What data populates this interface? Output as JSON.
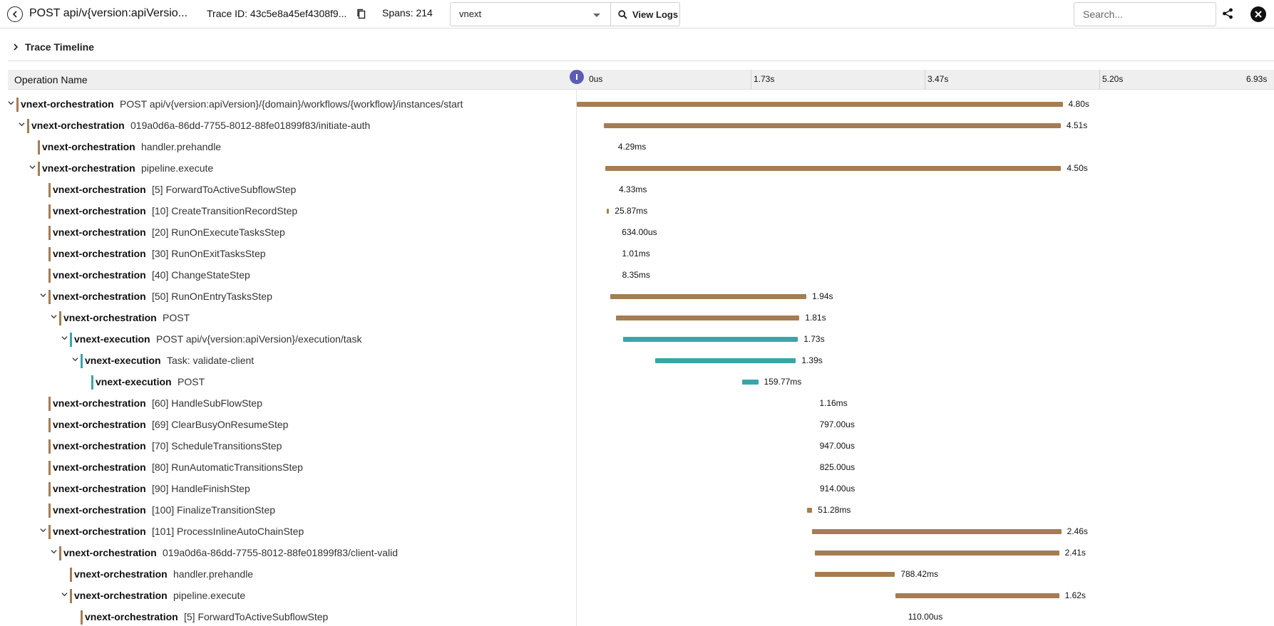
{
  "header": {
    "title": "POST api/v{version:apiVersio...",
    "trace_id": "Trace ID: 43c5e8a45ef4308f9...",
    "spans": "Spans: 214",
    "service_selected": "vnext",
    "view_logs_label": "View Logs",
    "search_placeholder": "Search..."
  },
  "timeline": {
    "toggle_label": "Trace Timeline",
    "op_name_header": "Operation Name",
    "ticks": [
      "0us",
      "1.73s",
      "3.47s",
      "5.20s",
      "6.93s"
    ]
  },
  "colors": {
    "orchestration": "#a67c52",
    "execution": "#3aa5a8",
    "scrubber": "#5c5cb5",
    "small_marker": "#e07050"
  },
  "rows": [
    {
      "depth": 0,
      "chevron": true,
      "service": "vnext-orchestration",
      "op": "POST api/v{version:apiVersion}/{domain}/workflows/{workflow}/instances/start",
      "kind": "orchestration",
      "start": 0.0,
      "dur": 4.8,
      "label": "4.80s"
    },
    {
      "depth": 1,
      "chevron": true,
      "service": "vnext-orchestration",
      "op": "019a0d6a-86dd-7755-8012-88fe01899f83/initiate-auth",
      "kind": "orchestration",
      "start": 0.271,
      "dur": 4.51,
      "label": "4.51s"
    },
    {
      "depth": 2,
      "chevron": false,
      "service": "vnext-orchestration",
      "op": "handler.prehandle",
      "kind": "orchestration",
      "start": 0.281,
      "dur": 0.00429,
      "label": "4.29ms"
    },
    {
      "depth": 2,
      "chevron": true,
      "service": "vnext-orchestration",
      "op": "pipeline.execute",
      "kind": "orchestration",
      "start": 0.285,
      "dur": 4.5,
      "label": "4.50s"
    },
    {
      "depth": 3,
      "chevron": false,
      "service": "vnext-orchestration",
      "op": "[5] ForwardToActiveSubflowStep",
      "kind": "orchestration",
      "start": 0.289,
      "dur": 0.00433,
      "label": "4.33ms"
    },
    {
      "depth": 3,
      "chevron": false,
      "service": "vnext-orchestration",
      "op": "[10] CreateTransitionRecordStep",
      "kind": "orchestration",
      "start": 0.293,
      "dur": 0.02587,
      "label": "25.87ms"
    },
    {
      "depth": 3,
      "chevron": false,
      "service": "vnext-orchestration",
      "op": "[20] RunOnExecuteTasksStep",
      "kind": "orchestration",
      "start": 0.319,
      "dur": 0.000634,
      "label": "634.00us"
    },
    {
      "depth": 3,
      "chevron": false,
      "service": "vnext-orchestration",
      "op": "[30] RunOnExitTasksStep",
      "kind": "orchestration",
      "start": 0.32,
      "dur": 0.00101,
      "label": "1.01ms"
    },
    {
      "depth": 3,
      "chevron": false,
      "service": "vnext-orchestration",
      "op": "[40] ChangeStateStep",
      "kind": "orchestration",
      "start": 0.321,
      "dur": 0.00835,
      "label": "8.35ms"
    },
    {
      "depth": 3,
      "chevron": true,
      "service": "vnext-orchestration",
      "op": "[50] RunOnEntryTasksStep",
      "kind": "orchestration",
      "start": 0.329,
      "dur": 1.94,
      "label": "1.94s"
    },
    {
      "depth": 4,
      "chevron": true,
      "service": "vnext-orchestration",
      "op": "POST",
      "kind": "orchestration",
      "start": 0.389,
      "dur": 1.81,
      "label": "1.81s"
    },
    {
      "depth": 5,
      "chevron": true,
      "service": "vnext-execution",
      "op": "POST api/v{version:apiVersion}/execution/task",
      "kind": "execution",
      "start": 0.455,
      "dur": 1.73,
      "label": "1.73s"
    },
    {
      "depth": 6,
      "chevron": true,
      "service": "vnext-execution",
      "op": "Task: validate-client",
      "kind": "execution",
      "start": 0.775,
      "dur": 1.39,
      "label": "1.39s"
    },
    {
      "depth": 7,
      "chevron": false,
      "service": "vnext-execution",
      "op": "POST",
      "kind": "execution",
      "start": 1.633,
      "dur": 0.15977,
      "label": "159.77ms"
    },
    {
      "depth": 3,
      "chevron": false,
      "service": "vnext-orchestration",
      "op": "[60] HandleSubFlowStep",
      "kind": "orchestration",
      "start": 2.27,
      "dur": 0.00116,
      "label": "1.16ms"
    },
    {
      "depth": 3,
      "chevron": false,
      "service": "vnext-orchestration",
      "op": "[69] ClearBusyOnResumeStep",
      "kind": "orchestration",
      "start": 2.271,
      "dur": 0.000797,
      "label": "797.00us"
    },
    {
      "depth": 3,
      "chevron": false,
      "service": "vnext-orchestration",
      "op": "[70] ScheduleTransitionsStep",
      "kind": "orchestration",
      "start": 2.272,
      "dur": 0.000947,
      "label": "947.00us"
    },
    {
      "depth": 3,
      "chevron": false,
      "service": "vnext-orchestration",
      "op": "[80] RunAutomaticTransitionsStep",
      "kind": "orchestration",
      "start": 2.273,
      "dur": 0.000825,
      "label": "825.00us"
    },
    {
      "depth": 3,
      "chevron": false,
      "service": "vnext-orchestration",
      "op": "[90] HandleFinishStep",
      "kind": "orchestration",
      "start": 2.274,
      "dur": 0.000914,
      "label": "914.00us"
    },
    {
      "depth": 3,
      "chevron": false,
      "service": "vnext-orchestration",
      "op": "[100] FinalizeTransitionStep",
      "kind": "orchestration",
      "start": 2.275,
      "dur": 0.05128,
      "label": "51.28ms"
    },
    {
      "depth": 3,
      "chevron": true,
      "service": "vnext-orchestration",
      "op": "[101] ProcessInlineAutoChainStep",
      "kind": "orchestration",
      "start": 2.326,
      "dur": 2.46,
      "label": "2.46s"
    },
    {
      "depth": 4,
      "chevron": true,
      "service": "vnext-orchestration",
      "op": "019a0d6a-86dd-7755-8012-88fe01899f83/client-valid",
      "kind": "orchestration",
      "start": 2.355,
      "dur": 2.41,
      "label": "2.41s"
    },
    {
      "depth": 5,
      "chevron": false,
      "service": "vnext-orchestration",
      "op": "handler.prehandle",
      "kind": "orchestration",
      "start": 2.355,
      "dur": 0.78842,
      "label": "788.42ms"
    },
    {
      "depth": 5,
      "chevron": true,
      "service": "vnext-orchestration",
      "op": "pipeline.execute",
      "kind": "orchestration",
      "start": 3.145,
      "dur": 1.62,
      "label": "1.62s"
    },
    {
      "depth": 6,
      "chevron": false,
      "service": "vnext-orchestration",
      "op": "[5] ForwardToActiveSubflowStep",
      "kind": "orchestration",
      "start": 3.146,
      "dur": 0.00011,
      "label": "110.00us"
    }
  ]
}
